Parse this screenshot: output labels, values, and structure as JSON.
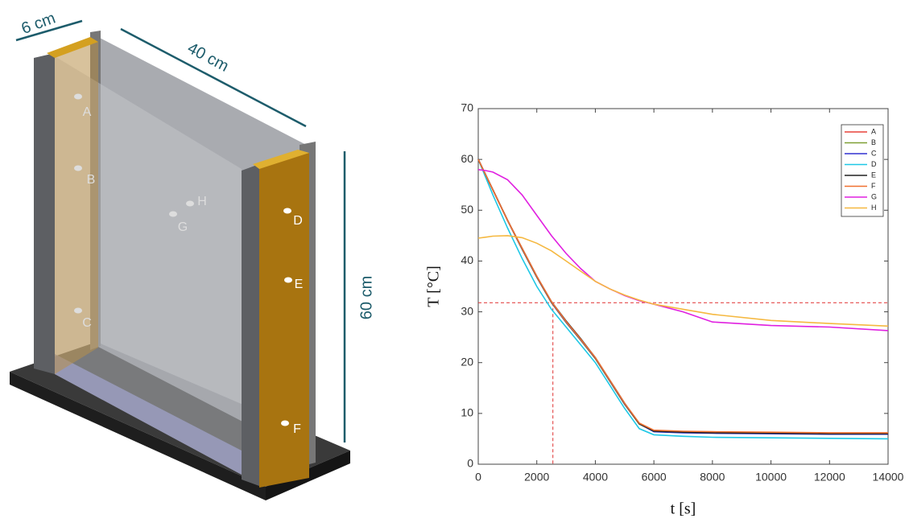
{
  "diagram": {
    "dimensions": [
      "6 cm",
      "40 cm",
      "60 cm"
    ],
    "sensors": [
      "A",
      "B",
      "C",
      "D",
      "E",
      "F",
      "G",
      "H"
    ]
  },
  "chart_data": {
    "type": "line",
    "xlabel": "t [s]",
    "ylabel": "T [°C]",
    "x": [
      0,
      250,
      500,
      1000,
      1500,
      2000,
      2500,
      3000,
      3500,
      4000,
      4500,
      5000,
      5500,
      6000,
      7000,
      8000,
      10000,
      12000,
      14000
    ],
    "series": [
      {
        "name": "A",
        "color": "#e8423a",
        "values": [
          60,
          57,
          54,
          48,
          42.3,
          36.8,
          31.8,
          27.9,
          24.4,
          20.8,
          16.3,
          11.8,
          7.9,
          6.5,
          6.3,
          6.2,
          6.1,
          6.0,
          6.0
        ]
      },
      {
        "name": "B",
        "color": "#7fa035",
        "values": [
          60,
          57,
          54,
          48,
          42.3,
          36.8,
          31.8,
          27.9,
          24.4,
          20.8,
          16.3,
          11.8,
          7.9,
          6.5,
          6.3,
          6.2,
          6.1,
          6.0,
          6.0
        ]
      },
      {
        "name": "C",
        "color": "#3030d0",
        "values": [
          60,
          57,
          54,
          48,
          42.4,
          36.9,
          31.9,
          28,
          24.5,
          20.9,
          16.4,
          11.9,
          8,
          6.4,
          6.2,
          6.1,
          6.0,
          5.9,
          5.9
        ]
      },
      {
        "name": "D",
        "color": "#1ec8e6",
        "values": [
          60,
          56.5,
          53,
          46.5,
          40.5,
          35,
          30.5,
          27,
          23.5,
          20,
          15.5,
          11,
          7,
          5.8,
          5.5,
          5.3,
          5.2,
          5.1,
          5.0
        ]
      },
      {
        "name": "E",
        "color": "#222222",
        "values": [
          60,
          57,
          54,
          48,
          42.5,
          37,
          32,
          28.2,
          24.7,
          21,
          16.5,
          12,
          8,
          6.5,
          6.3,
          6.2,
          6.1,
          6.0,
          6.0
        ]
      },
      {
        "name": "F",
        "color": "#f07030",
        "values": [
          60,
          57,
          54,
          48,
          42.5,
          37,
          32,
          28.1,
          24.6,
          21,
          16.5,
          12,
          8.1,
          6.7,
          6.5,
          6.4,
          6.3,
          6.2,
          6.2
        ]
      },
      {
        "name": "G",
        "color": "#e020e0",
        "values": [
          58,
          57.8,
          57.5,
          56,
          53,
          49,
          45,
          41.5,
          38.5,
          36,
          34.5,
          33.2,
          32.2,
          31.5,
          30,
          28,
          27.3,
          27,
          26.3
        ]
      },
      {
        "name": "H",
        "color": "#f5b840",
        "values": [
          44.5,
          44.7,
          44.9,
          45,
          44.6,
          43.5,
          42,
          40,
          38,
          36,
          34.5,
          33.3,
          32.3,
          31.5,
          30.5,
          29.5,
          28.3,
          27.7,
          27.2
        ]
      }
    ],
    "xlim": [
      0,
      14000
    ],
    "xticks": [
      0,
      2000,
      4000,
      6000,
      8000,
      10000,
      12000,
      14000
    ],
    "ylim": [
      0,
      70
    ],
    "yticks": [
      0,
      10,
      20,
      30,
      40,
      50,
      60,
      70
    ],
    "reference_y": 31.8,
    "reference_x": 2550,
    "reference_color": "#e03030",
    "legend": "upper right"
  }
}
